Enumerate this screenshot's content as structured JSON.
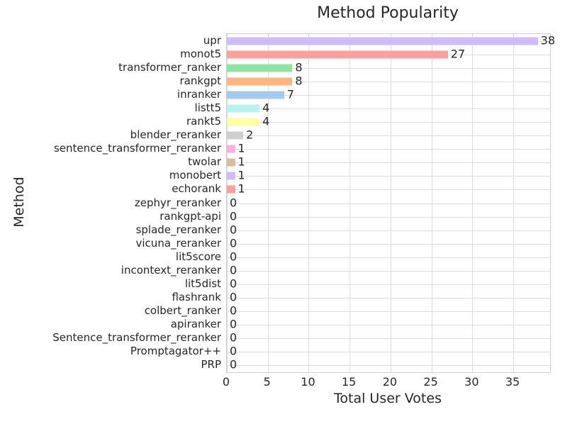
{
  "chart_data": {
    "type": "bar",
    "orientation": "horizontal",
    "title": "Method Popularity",
    "xlabel": "Total User Votes",
    "ylabel": "Method",
    "categories": [
      "upr",
      "monot5",
      "transformer_ranker",
      "rankgpt",
      "inranker",
      "listt5",
      "rankt5",
      "blender_reranker",
      "sentence_transformer_reranker",
      "twolar",
      "monobert",
      "echorank",
      "zephyr_reranker",
      "rankgpt-api",
      "splade_reranker",
      "vicuna_reranker",
      "lit5score",
      "incontext_reranker",
      "lit5dist",
      "flashrank",
      "colbert_ranker",
      "apiranker",
      "Sentence_transformer_reranker",
      "Promptagator++",
      "PRP"
    ],
    "values": [
      38,
      27,
      8,
      8,
      7,
      4,
      4,
      2,
      1,
      1,
      1,
      1,
      0,
      0,
      0,
      0,
      0,
      0,
      0,
      0,
      0,
      0,
      0,
      0,
      0
    ],
    "value_labels": [
      "38",
      "27",
      "8",
      "8",
      "7",
      "4",
      "4",
      "2",
      "1",
      "1",
      "1",
      "1",
      "0",
      "0",
      "0",
      "0",
      "0",
      "0",
      "0",
      "0",
      "0",
      "0",
      "0",
      "0",
      "0"
    ],
    "xticks": [
      0,
      5,
      10,
      15,
      20,
      25,
      30,
      35
    ],
    "xtick_labels": [
      "0",
      "5",
      "10",
      "15",
      "20",
      "25",
      "30",
      "35"
    ],
    "xlim": [
      0,
      39.5
    ],
    "grid": true,
    "legend": false,
    "bar_palette": [
      "#d0bbff",
      "#ff9f9b",
      "#8de5a1",
      "#ffb482",
      "#a1c9f4",
      "#b9f2f0",
      "#fffea3",
      "#cfcfcf",
      "#fab0e4",
      "#debb9b"
    ]
  },
  "colors": {
    "text": "#262626",
    "grid": "#dcdcdc",
    "plot_border": "#cccccc",
    "background": "#ffffff"
  }
}
